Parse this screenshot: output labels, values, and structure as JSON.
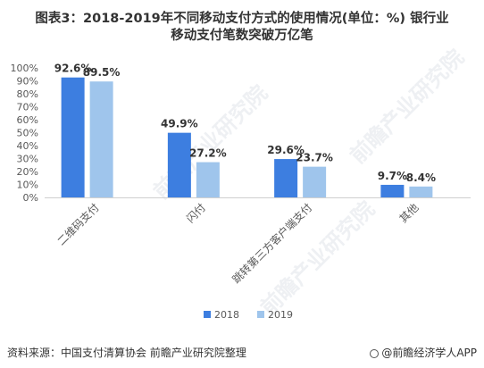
{
  "title_line1": "图表3：2018-2019年不同移动支付方式的使用情况(单位：%) 银行业",
  "title_line2": "移动支付笔数突破万亿笔",
  "source": "资料来源：中国支付清算协会 前瞻产业研究院整理",
  "credit": "@前瞻经济学人APP",
  "watermark": "前瞻产业研究院",
  "colors": {
    "s2018": "#3d7ee0",
    "s2019": "#9fc5ec",
    "axis": "#d0d0d0",
    "text": "#595959"
  },
  "chart_data": {
    "type": "bar",
    "categories": [
      "二维码支付",
      "闪付",
      "跳转第三方客户端支付",
      "其他"
    ],
    "series": [
      {
        "name": "2018",
        "values": [
          92.6,
          49.9,
          29.6,
          9.7
        ]
      },
      {
        "name": "2019",
        "values": [
          89.5,
          27.2,
          23.7,
          8.4
        ]
      }
    ],
    "data_labels": [
      [
        "92.6%",
        "49.9%",
        "29.6%",
        "9.7%"
      ],
      [
        "89.5%",
        "27.2%",
        "23.7%",
        "8.4%"
      ]
    ],
    "yticks": [
      "0%",
      "10%",
      "20%",
      "30%",
      "40%",
      "50%",
      "60%",
      "70%",
      "80%",
      "90%",
      "100%"
    ],
    "ylim": [
      0,
      100
    ],
    "legend_position": "bottom",
    "grid": false
  }
}
